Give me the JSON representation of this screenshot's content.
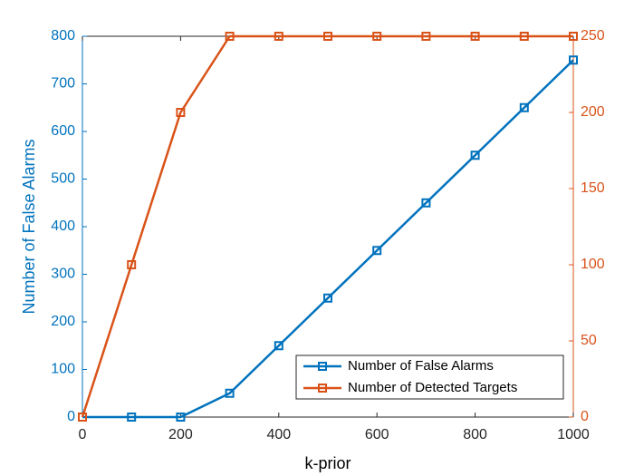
{
  "chart_data": {
    "type": "line",
    "x_label": "k-prior",
    "y_label": "Number of False Alarms",
    "x": [
      0,
      100,
      200,
      300,
      400,
      500,
      600,
      700,
      800,
      900,
      1000
    ],
    "series": [
      {
        "name": "Number of False Alarms",
        "color": "#0072bd",
        "axis": "y",
        "values": [
          0,
          0,
          0,
          50,
          150,
          250,
          350,
          450,
          550,
          650,
          750
        ]
      },
      {
        "name": "Number of Detected Targets",
        "color": "#d95319",
        "axis": "y2",
        "values": [
          0,
          100,
          200,
          250,
          250,
          250,
          250,
          250,
          250,
          250,
          250
        ]
      }
    ],
    "xlim": [
      0,
      1000
    ],
    "xticks": [
      0,
      200,
      400,
      600,
      800,
      1000
    ],
    "ylim": [
      0,
      800
    ],
    "yticks": [
      0,
      100,
      200,
      300,
      400,
      500,
      600,
      700,
      800
    ],
    "y2lim": [
      0,
      250
    ],
    "y2ticks": [
      0,
      50,
      100,
      150,
      200,
      250
    ],
    "legend": "lower right"
  }
}
